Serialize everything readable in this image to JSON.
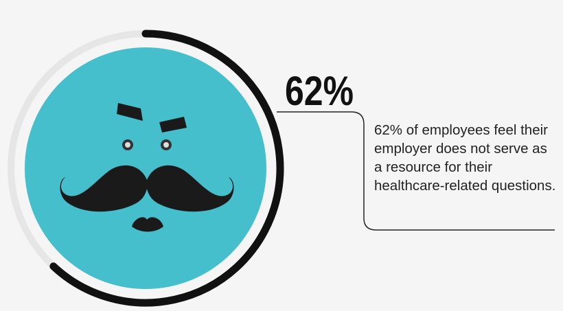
{
  "chart_data": {
    "type": "ring",
    "values": [
      62
    ],
    "value_labels": [
      "62%"
    ],
    "ylim": [
      0,
      100
    ],
    "color": "#111111",
    "track_color": "#e6e6e6",
    "face_color": "#45bfcc",
    "description": "62% of employees feel their employer does not serve as a resource for their healthcare-related questions."
  }
}
